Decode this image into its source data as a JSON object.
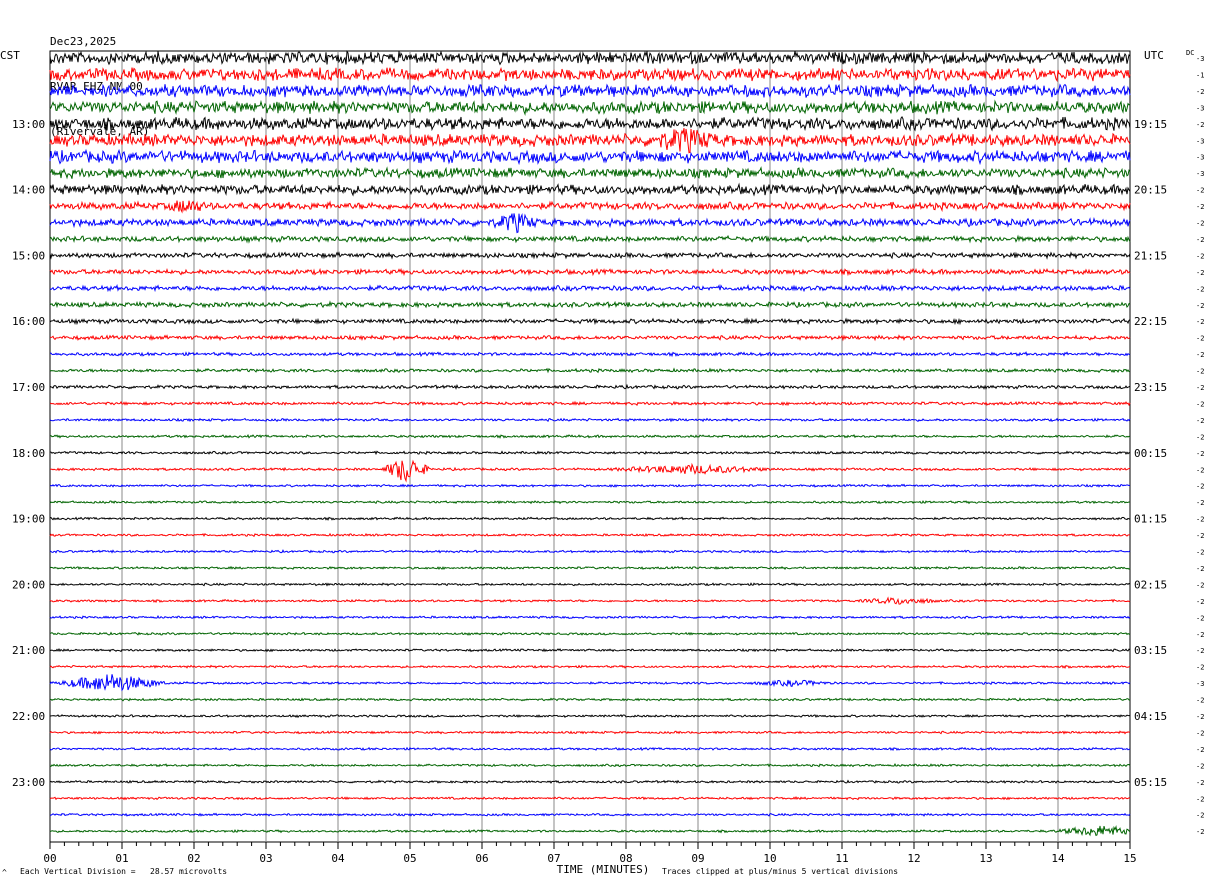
{
  "header": {
    "date": "Dec23,2025",
    "station": "RVAR EHZ NM 00",
    "location": "(Rivervale, AR)"
  },
  "labels": {
    "left_tz": "CST",
    "right_tz": "UTC",
    "dc": "DC"
  },
  "footer": {
    "scale": "Each Vertical Division =   28.57 microvolts",
    "clip": "Traces clipped at plus/minus 5 vertical divisions",
    "icon": "small-a-icon"
  },
  "chart_data": {
    "type": "line",
    "subtype": "helicorder",
    "xlabel": "TIME (MINUTES)",
    "x_ticks": [
      "00",
      "01",
      "02",
      "03",
      "04",
      "05",
      "06",
      "07",
      "08",
      "09",
      "10",
      "11",
      "12",
      "13",
      "14",
      "15"
    ],
    "xlim": [
      0,
      15
    ],
    "grid": "vertical lines every minute",
    "trace_colors": [
      "#000000",
      "#ff0000",
      "#0000ff",
      "#006400"
    ],
    "rows_per_hour": 4,
    "row_count": 48,
    "left_hour_labels": [
      "13:00",
      "14:00",
      "15:00",
      "16:00",
      "17:00",
      "18:00",
      "19:00",
      "20:00",
      "21:00",
      "22:00",
      "23:00"
    ],
    "right_hour_labels": [
      "19:15",
      "20:15",
      "21:15",
      "22:15",
      "23:15",
      "00:15",
      "01:15",
      "02:15",
      "03:15",
      "04:15",
      "05:15"
    ],
    "first_labeled_row": 4,
    "dc_offsets": [
      "-3",
      "-1",
      "-2",
      "-3",
      "-2",
      "-3",
      "-3",
      "-3",
      "-2",
      "-2",
      "-2",
      "-2",
      "-2",
      "-2",
      "-2",
      "-2",
      "-2",
      "-2",
      "-2",
      "-2",
      "-2",
      "-2",
      "-2",
      "-2",
      "-2",
      "-2",
      "-2",
      "-2",
      "-2",
      "-2",
      "-2",
      "-2",
      "-2",
      "-2",
      "-2",
      "-2",
      "-2",
      "-2",
      "-3",
      "-2",
      "-2",
      "-2",
      "-2",
      "-2",
      "-2",
      "-2",
      "-2",
      "-2"
    ],
    "row_noise_amplitude": [
      5,
      5,
      5,
      5,
      5,
      5,
      5,
      4,
      4,
      3,
      3,
      2.2,
      2,
      2,
      2,
      2,
      1.8,
      1.6,
      1.3,
      1.3,
      1.3,
      1.2,
      1,
      1,
      1,
      1,
      0.9,
      0.9,
      0.9,
      0.9,
      0.9,
      0.9,
      0.9,
      0.9,
      0.9,
      0.9,
      0.9,
      0.9,
      0.9,
      0.9,
      0.9,
      0.9,
      0.9,
      0.9,
      0.9,
      0.9,
      0.9,
      0.9
    ],
    "events": [
      {
        "row": 5,
        "minute": 8.8,
        "amplitude": 9,
        "duration": 0.5
      },
      {
        "row": 9,
        "minute": 1.9,
        "amplitude": 5,
        "duration": 0.3
      },
      {
        "row": 10,
        "minute": 6.45,
        "amplitude": 8,
        "duration": 0.35
      },
      {
        "row": 25,
        "minute": 4.95,
        "amplitude": 13,
        "duration": 0.35
      },
      {
        "row": 25,
        "minute": 8.9,
        "amplitude": 4,
        "duration": 1.2
      },
      {
        "row": 33,
        "minute": 11.8,
        "amplitude": 3,
        "duration": 0.6
      },
      {
        "row": 38,
        "minute": 0.85,
        "amplitude": 9,
        "duration": 0.8
      },
      {
        "row": 38,
        "minute": 10.3,
        "amplitude": 2.5,
        "duration": 0.6
      },
      {
        "row": 47,
        "minute": 14.6,
        "amplitude": 5,
        "duration": 0.7
      }
    ]
  }
}
